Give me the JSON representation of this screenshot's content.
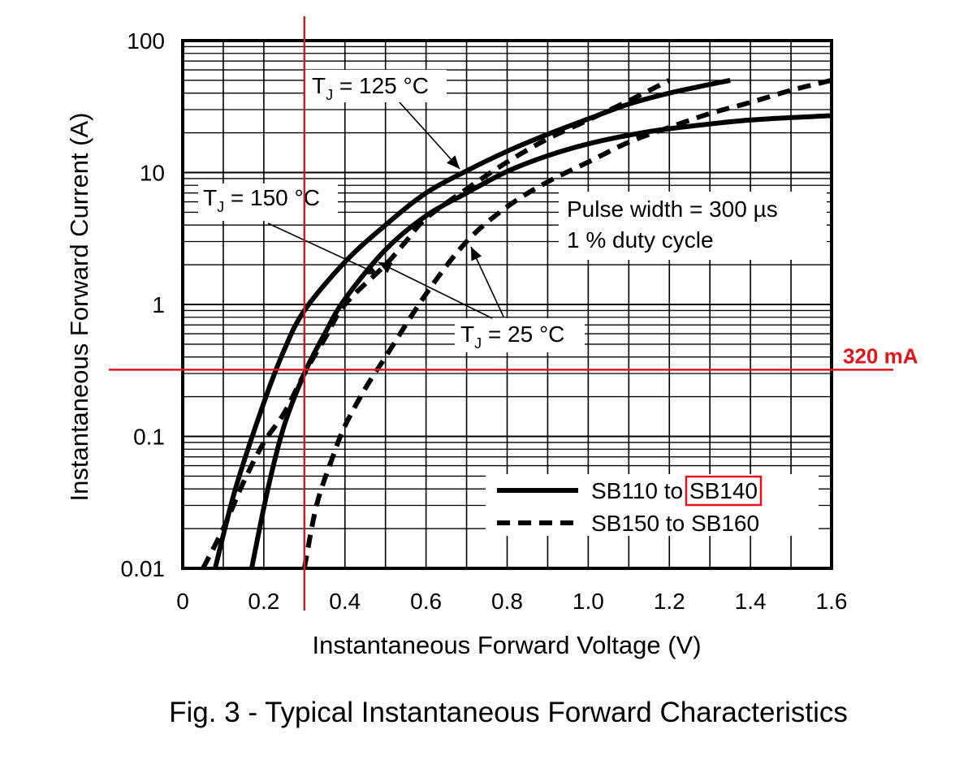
{
  "caption": "Fig. 3 - Typical Instantaneous Forward Characteristics",
  "chart_data": {
    "type": "line",
    "xlabel": "Instantaneous Forward Voltage (V)",
    "ylabel": "Instantaneous Forward Current (A)",
    "xlim": [
      0,
      1.6
    ],
    "ylim": [
      0.01,
      100
    ],
    "yscale": "log",
    "grid": true,
    "x_ticks": [
      0,
      0.2,
      0.4,
      0.6,
      0.8,
      1.0,
      1.2,
      1.4,
      1.6
    ],
    "x_tick_labels": [
      "0",
      "0.2",
      "0.4",
      "0.6",
      "0.8",
      "1.0",
      "1.2",
      "1.4",
      "1.6"
    ],
    "y_ticks": [
      0.01,
      0.1,
      1,
      10,
      100
    ],
    "y_tick_labels": [
      "0.01",
      "0.1",
      "1",
      "10",
      "100"
    ],
    "legend": {
      "position": "bottom-right",
      "entries": [
        {
          "label_prefix": "SB110 to ",
          "label_highlight": "SB140",
          "style": "solid"
        },
        {
          "label": "SB150 to SB160",
          "style": "dashed"
        }
      ]
    },
    "series": [
      {
        "group": "SB110 to SB140",
        "temp": "TJ = 150 °C",
        "style": "solid",
        "x": [
          0.08,
          0.13,
          0.2,
          0.25,
          0.3,
          0.4,
          0.5,
          0.6,
          0.7,
          0.8,
          0.9,
          1.0,
          1.1,
          1.2,
          1.35
        ],
        "y": [
          0.01,
          0.04,
          0.18,
          0.45,
          0.9,
          2.1,
          4.0,
          7.0,
          10.3,
          14.5,
          19.5,
          25.5,
          33,
          40,
          50
        ]
      },
      {
        "group": "SB110 to SB140",
        "temp": "TJ = 25 °C",
        "style": "solid",
        "x": [
          0.17,
          0.21,
          0.25,
          0.3,
          0.35,
          0.4,
          0.5,
          0.6,
          0.7,
          0.8,
          0.9,
          1.0,
          1.1,
          1.2,
          1.4,
          1.6
        ],
        "y": [
          0.01,
          0.04,
          0.12,
          0.3,
          0.6,
          1.1,
          2.6,
          4.7,
          7.0,
          10.2,
          13.4,
          16.5,
          19.2,
          21.5,
          25,
          27
        ]
      },
      {
        "group": "SB150 to SB160",
        "temp": "TJ = 150 °C",
        "style": "dashed",
        "x": [
          0.05,
          0.1,
          0.15,
          0.2,
          0.25,
          0.3,
          0.35,
          0.4,
          0.5,
          0.55,
          0.6,
          0.7,
          0.8,
          0.9,
          1.0,
          1.1,
          1.2
        ],
        "y": [
          0.01,
          0.02,
          0.045,
          0.09,
          0.15,
          0.3,
          0.55,
          1.0,
          2.0,
          3.0,
          4.5,
          7.5,
          12,
          18,
          25,
          35,
          50
        ]
      },
      {
        "group": "SB150 to SB160",
        "temp": "TJ = 25 °C",
        "style": "dashed",
        "x": [
          0.3,
          0.33,
          0.37,
          0.4,
          0.45,
          0.5,
          0.6,
          0.7,
          0.8,
          0.9,
          1.0,
          1.1,
          1.2,
          1.3,
          1.4,
          1.5,
          1.6
        ],
        "y": [
          0.01,
          0.03,
          0.07,
          0.12,
          0.23,
          0.4,
          1.2,
          3.0,
          5.5,
          8.5,
          12,
          17,
          22,
          28,
          34,
          42,
          50
        ]
      }
    ],
    "annotations": [
      {
        "text_prefix": "T",
        "text_sub": "J",
        "text_rest": " = 125 °C",
        "at": [
          0.7,
          10.5
        ]
      },
      {
        "text_prefix": "T",
        "text_sub": "J",
        "text_rest": " = 150 °C",
        "at": [
          0.45,
          2.1
        ]
      },
      {
        "text_prefix": "T",
        "text_sub": "J",
        "text_rest": " = 25 °C",
        "at": [
          0.72,
          2.6
        ]
      },
      {
        "text": "Pulse width = 300 µs"
      },
      {
        "text": "1 % duty cycle"
      }
    ],
    "reference_lines": {
      "vertical_x": 0.3,
      "horizontal_y": 0.32,
      "horizontal_label": "320 mA",
      "color": "#e0151b"
    },
    "colors": {
      "curve": "#000000",
      "grid": "#000000",
      "marker": "#e0151b"
    }
  }
}
